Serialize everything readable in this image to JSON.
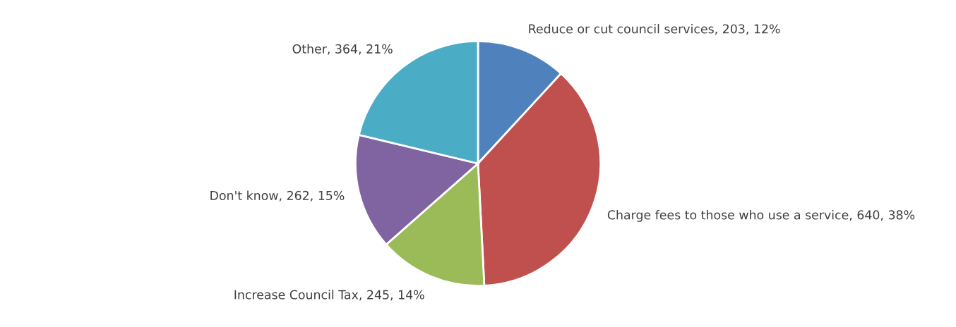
{
  "chart_data": {
    "type": "pie",
    "categories": [
      "Reduce or cut council services",
      "Charge fees to those who use a service",
      "Increase Council Tax",
      "Don't know",
      "Other"
    ],
    "values": [
      203,
      640,
      245,
      262,
      364
    ],
    "value_labels": [
      "203, 12%",
      "640, 38%",
      "245, 14%",
      "262, 15%",
      "364, 21%"
    ],
    "colors": [
      "#4f81bd",
      "#c0504d",
      "#9bbb59",
      "#8064a2",
      "#4bacc6"
    ],
    "legend": false
  }
}
